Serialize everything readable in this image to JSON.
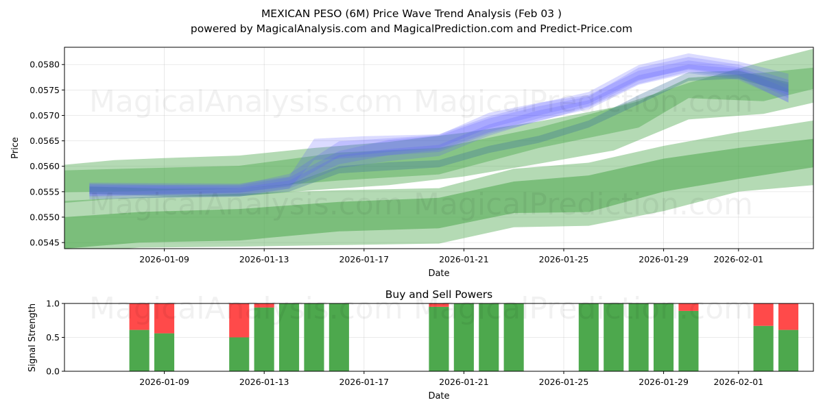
{
  "title_line1": "MEXICAN PESO (6M) Price Wave Trend Analysis (Feb 03 )",
  "title_line2": "powered by MagicalAnalysis.com and MagicalPrediction.com and Predict-Price.com",
  "watermarks": [
    "MagicalAnalysis.com",
    "MagicalPrediction.com"
  ],
  "colors": {
    "green": "#4da84d",
    "red": "#ff4a4a",
    "blue": "#5a5aff",
    "gray_blue": "#3a6f9a"
  },
  "chart_data": [
    {
      "type": "area",
      "title": "",
      "xlabel": "Date",
      "ylabel": "Price",
      "x_domain": [
        "2026-01-05",
        "2026-02-04"
      ],
      "ylim": [
        0.05438,
        0.05834
      ],
      "x_ticks": [
        {
          "date": "2026-01-09",
          "label": "2026-01-09"
        },
        {
          "date": "2026-01-13",
          "label": "2026-01-13"
        },
        {
          "date": "2026-01-17",
          "label": "2026-01-17"
        },
        {
          "date": "2026-01-21",
          "label": "2026-01-21"
        },
        {
          "date": "2026-01-25",
          "label": "2026-01-25"
        },
        {
          "date": "2026-01-29",
          "label": "2026-01-29"
        },
        {
          "date": "2026-02-01",
          "label": "2026-02-01"
        }
      ],
      "y_ticks": [
        {
          "value": 0.0545,
          "label": "0.0545"
        },
        {
          "value": 0.055,
          "label": "0.0550"
        },
        {
          "value": 0.0555,
          "label": "0.0555"
        },
        {
          "value": 0.056,
          "label": "0.0560"
        },
        {
          "value": 0.0565,
          "label": "0.0565"
        },
        {
          "value": 0.057,
          "label": "0.0570"
        },
        {
          "value": 0.0575,
          "label": "0.0575"
        },
        {
          "value": 0.058,
          "label": "0.0580"
        }
      ],
      "green_bands": [
        {
          "name": "upper-wide",
          "opacity": 0.42,
          "dates": [
            "2026-01-05",
            "2026-01-07",
            "2026-01-09",
            "2026-01-12",
            "2026-01-15",
            "2026-01-18",
            "2026-01-21",
            "2026-01-24",
            "2026-01-27",
            "2026-01-30",
            "2026-02-02",
            "2026-02-04"
          ],
          "upper": [
            0.05603,
            0.05612,
            0.05616,
            0.05621,
            0.05636,
            0.05648,
            0.05666,
            0.05688,
            0.05716,
            0.05764,
            0.05806,
            0.05831
          ],
          "lower": [
            0.05528,
            0.05536,
            0.05539,
            0.05541,
            0.05553,
            0.05563,
            0.0558,
            0.05605,
            0.05631,
            0.05692,
            0.05703,
            0.05725
          ]
        },
        {
          "name": "upper-mid",
          "opacity": 0.45,
          "dates": [
            "2026-01-05",
            "2026-01-08",
            "2026-01-12",
            "2026-01-16",
            "2026-01-20",
            "2026-01-24",
            "2026-01-28",
            "2026-01-30",
            "2026-02-02",
            "2026-02-04"
          ],
          "upper": [
            0.05592,
            0.05596,
            0.05601,
            0.05627,
            0.05636,
            0.05676,
            0.05728,
            0.05774,
            0.05784,
            0.05794
          ],
          "lower": [
            0.05549,
            0.05551,
            0.05556,
            0.05572,
            0.05584,
            0.05636,
            0.05676,
            0.05734,
            0.05728,
            0.05752
          ]
        },
        {
          "name": "lower-wide",
          "opacity": 0.42,
          "dates": [
            "2026-01-05",
            "2026-01-08",
            "2026-01-12",
            "2026-01-16",
            "2026-01-20",
            "2026-01-23",
            "2026-01-26",
            "2026-01-29",
            "2026-02-01",
            "2026-02-04"
          ],
          "upper": [
            0.05532,
            0.05539,
            0.05546,
            0.05553,
            0.05557,
            0.05595,
            0.05607,
            0.0564,
            0.05667,
            0.0569
          ],
          "lower": [
            0.0543,
            0.0544,
            0.05442,
            0.05445,
            0.05448,
            0.0548,
            0.05483,
            0.05512,
            0.0555,
            0.05563
          ]
        },
        {
          "name": "lower-core",
          "opacity": 0.55,
          "dates": [
            "2026-01-05",
            "2026-01-08",
            "2026-01-12",
            "2026-01-16",
            "2026-01-20",
            "2026-01-23",
            "2026-01-26",
            "2026-01-29",
            "2026-02-01",
            "2026-02-04"
          ],
          "upper": [
            0.055,
            0.0551,
            0.05516,
            0.0553,
            0.05538,
            0.0557,
            0.05582,
            0.05615,
            0.05636,
            0.05654
          ],
          "lower": [
            0.05438,
            0.0545,
            0.05454,
            0.05472,
            0.05478,
            0.05508,
            0.0551,
            0.0555,
            0.05575,
            0.05598
          ]
        }
      ],
      "blue_bands": [
        {
          "name": "blue-1",
          "opacity": 0.22,
          "dates": [
            "2026-01-06",
            "2026-01-09",
            "2026-01-12",
            "2026-01-14",
            "2026-01-15",
            "2026-01-17",
            "2026-01-20",
            "2026-01-22",
            "2026-01-24",
            "2026-01-26",
            "2026-01-28",
            "2026-01-30",
            "2026-02-01",
            "2026-02-03"
          ],
          "upper": [
            0.05568,
            0.05567,
            0.05566,
            0.0558,
            0.05654,
            0.05659,
            0.05663,
            0.05698,
            0.05724,
            0.05746,
            0.05799,
            0.05822,
            0.05806,
            0.05782
          ],
          "lower": [
            0.05535,
            0.05538,
            0.0554,
            0.05556,
            0.05612,
            0.05618,
            0.05628,
            0.05664,
            0.05688,
            0.05716,
            0.05762,
            0.05786,
            0.05774,
            0.05725
          ]
        },
        {
          "name": "blue-2",
          "opacity": 0.22,
          "dates": [
            "2026-01-06",
            "2026-01-09",
            "2026-01-12",
            "2026-01-14",
            "2026-01-16",
            "2026-01-18",
            "2026-01-20",
            "2026-01-22",
            "2026-01-24",
            "2026-01-26",
            "2026-01-28",
            "2026-01-30",
            "2026-02-01",
            "2026-02-03"
          ],
          "upper": [
            0.05564,
            0.05563,
            0.05562,
            0.05578,
            0.0563,
            0.05652,
            0.0566,
            0.05694,
            0.05718,
            0.05737,
            0.05794,
            0.05815,
            0.058,
            0.0577
          ],
          "lower": [
            0.0554,
            0.05544,
            0.05548,
            0.0556,
            0.05604,
            0.05622,
            0.05632,
            0.05667,
            0.05694,
            0.05718,
            0.05768,
            0.05792,
            0.0578,
            0.05734
          ]
        },
        {
          "name": "blue-3",
          "opacity": 0.22,
          "dates": [
            "2026-01-06",
            "2026-01-09",
            "2026-01-12",
            "2026-01-14",
            "2026-01-16",
            "2026-01-18",
            "2026-01-20",
            "2026-01-22",
            "2026-01-24",
            "2026-01-26",
            "2026-01-28",
            "2026-01-30",
            "2026-02-01",
            "2026-02-03"
          ],
          "upper": [
            0.05566,
            0.05564,
            0.05564,
            0.05585,
            0.05649,
            0.05655,
            0.05662,
            0.05705,
            0.05725,
            0.0574,
            0.05788,
            0.05808,
            0.05795,
            0.0576
          ],
          "lower": [
            0.05545,
            0.05546,
            0.05548,
            0.05562,
            0.05618,
            0.05628,
            0.05636,
            0.05675,
            0.057,
            0.05723,
            0.0577,
            0.0579,
            0.05778,
            0.0574
          ]
        },
        {
          "name": "blue-4",
          "opacity": 0.22,
          "dates": [
            "2026-01-06",
            "2026-01-09",
            "2026-01-12",
            "2026-01-14",
            "2026-01-16",
            "2026-01-18",
            "2026-01-20",
            "2026-01-22",
            "2026-01-24",
            "2026-01-26",
            "2026-01-28",
            "2026-01-30",
            "2026-02-01",
            "2026-02-03"
          ],
          "upper": [
            0.0556,
            0.0556,
            0.05558,
            0.05572,
            0.05622,
            0.05634,
            0.05642,
            0.05682,
            0.0571,
            0.0573,
            0.05779,
            0.058,
            0.05792,
            0.05752
          ],
          "lower": [
            0.05542,
            0.05544,
            0.05544,
            0.05556,
            0.05596,
            0.0561,
            0.0562,
            0.0566,
            0.0569,
            0.05712,
            0.0576,
            0.05783,
            0.0577,
            0.05726
          ]
        }
      ],
      "gray_blue_bands": [
        {
          "name": "overlap-1",
          "opacity": 0.32,
          "dates": [
            "2026-01-06",
            "2026-01-09",
            "2026-01-12",
            "2026-01-14",
            "2026-01-16",
            "2026-01-18",
            "2026-01-20",
            "2026-01-22",
            "2026-01-24",
            "2026-01-26",
            "2026-01-28",
            "2026-01-30",
            "2026-02-01",
            "2026-02-03"
          ],
          "upper": [
            0.0556,
            0.05556,
            0.05556,
            0.05565,
            0.056,
            0.05608,
            0.05612,
            0.0564,
            0.0566,
            0.0569,
            0.0574,
            0.05785,
            0.05788,
            0.05765
          ],
          "lower": [
            0.05546,
            0.05541,
            0.05541,
            0.0555,
            0.05586,
            0.05592,
            0.05598,
            0.05626,
            0.05646,
            0.05676,
            0.05722,
            0.05768,
            0.05772,
            0.05745
          ]
        }
      ]
    },
    {
      "type": "bar",
      "title": "Buy and Sell Powers",
      "xlabel": "Date",
      "ylabel": "Signal Strength",
      "ylim": [
        0,
        1
      ],
      "x_domain": [
        "2026-01-05",
        "2026-02-04"
      ],
      "y_ticks": [
        {
          "value": 0.0,
          "label": "0.0"
        },
        {
          "value": 0.5,
          "label": "0.5"
        },
        {
          "value": 1.0,
          "label": "1.0"
        }
      ],
      "x_ticks": [
        {
          "date": "2026-01-09",
          "label": "2026-01-09"
        },
        {
          "date": "2026-01-13",
          "label": "2026-01-13"
        },
        {
          "date": "2026-01-17",
          "label": "2026-01-17"
        },
        {
          "date": "2026-01-21",
          "label": "2026-01-21"
        },
        {
          "date": "2026-01-25",
          "label": "2026-01-25"
        },
        {
          "date": "2026-01-29",
          "label": "2026-01-29"
        },
        {
          "date": "2026-02-01",
          "label": "2026-02-01"
        }
      ],
      "series": [
        {
          "name": "Buy",
          "color": "#4da84d",
          "dates": [
            "2026-01-08",
            "2026-01-09",
            "2026-01-12",
            "2026-01-13",
            "2026-01-14",
            "2026-01-15",
            "2026-01-16",
            "2026-01-20",
            "2026-01-21",
            "2026-01-22",
            "2026-01-23",
            "2026-01-26",
            "2026-01-27",
            "2026-01-28",
            "2026-01-29",
            "2026-01-30",
            "2026-02-02",
            "2026-02-03"
          ],
          "values": [
            0.61,
            0.56,
            0.5,
            0.94,
            1.0,
            1.0,
            1.0,
            0.95,
            1.0,
            1.0,
            1.0,
            1.0,
            1.0,
            1.0,
            1.0,
            0.89,
            0.67,
            0.61
          ]
        },
        {
          "name": "Sell",
          "color": "#ff4a4a",
          "dates": [
            "2026-01-08",
            "2026-01-09",
            "2026-01-12",
            "2026-01-13",
            "2026-01-14",
            "2026-01-15",
            "2026-01-16",
            "2026-01-20",
            "2026-01-21",
            "2026-01-22",
            "2026-01-23",
            "2026-01-26",
            "2026-01-27",
            "2026-01-28",
            "2026-01-29",
            "2026-01-30",
            "2026-02-02",
            "2026-02-03"
          ],
          "values": [
            0.39,
            0.44,
            0.5,
            0.06,
            0.0,
            0.0,
            0.0,
            0.05,
            0.0,
            0.0,
            0.0,
            0.0,
            0.0,
            0.0,
            0.0,
            0.11,
            0.33,
            0.39
          ]
        }
      ]
    }
  ]
}
